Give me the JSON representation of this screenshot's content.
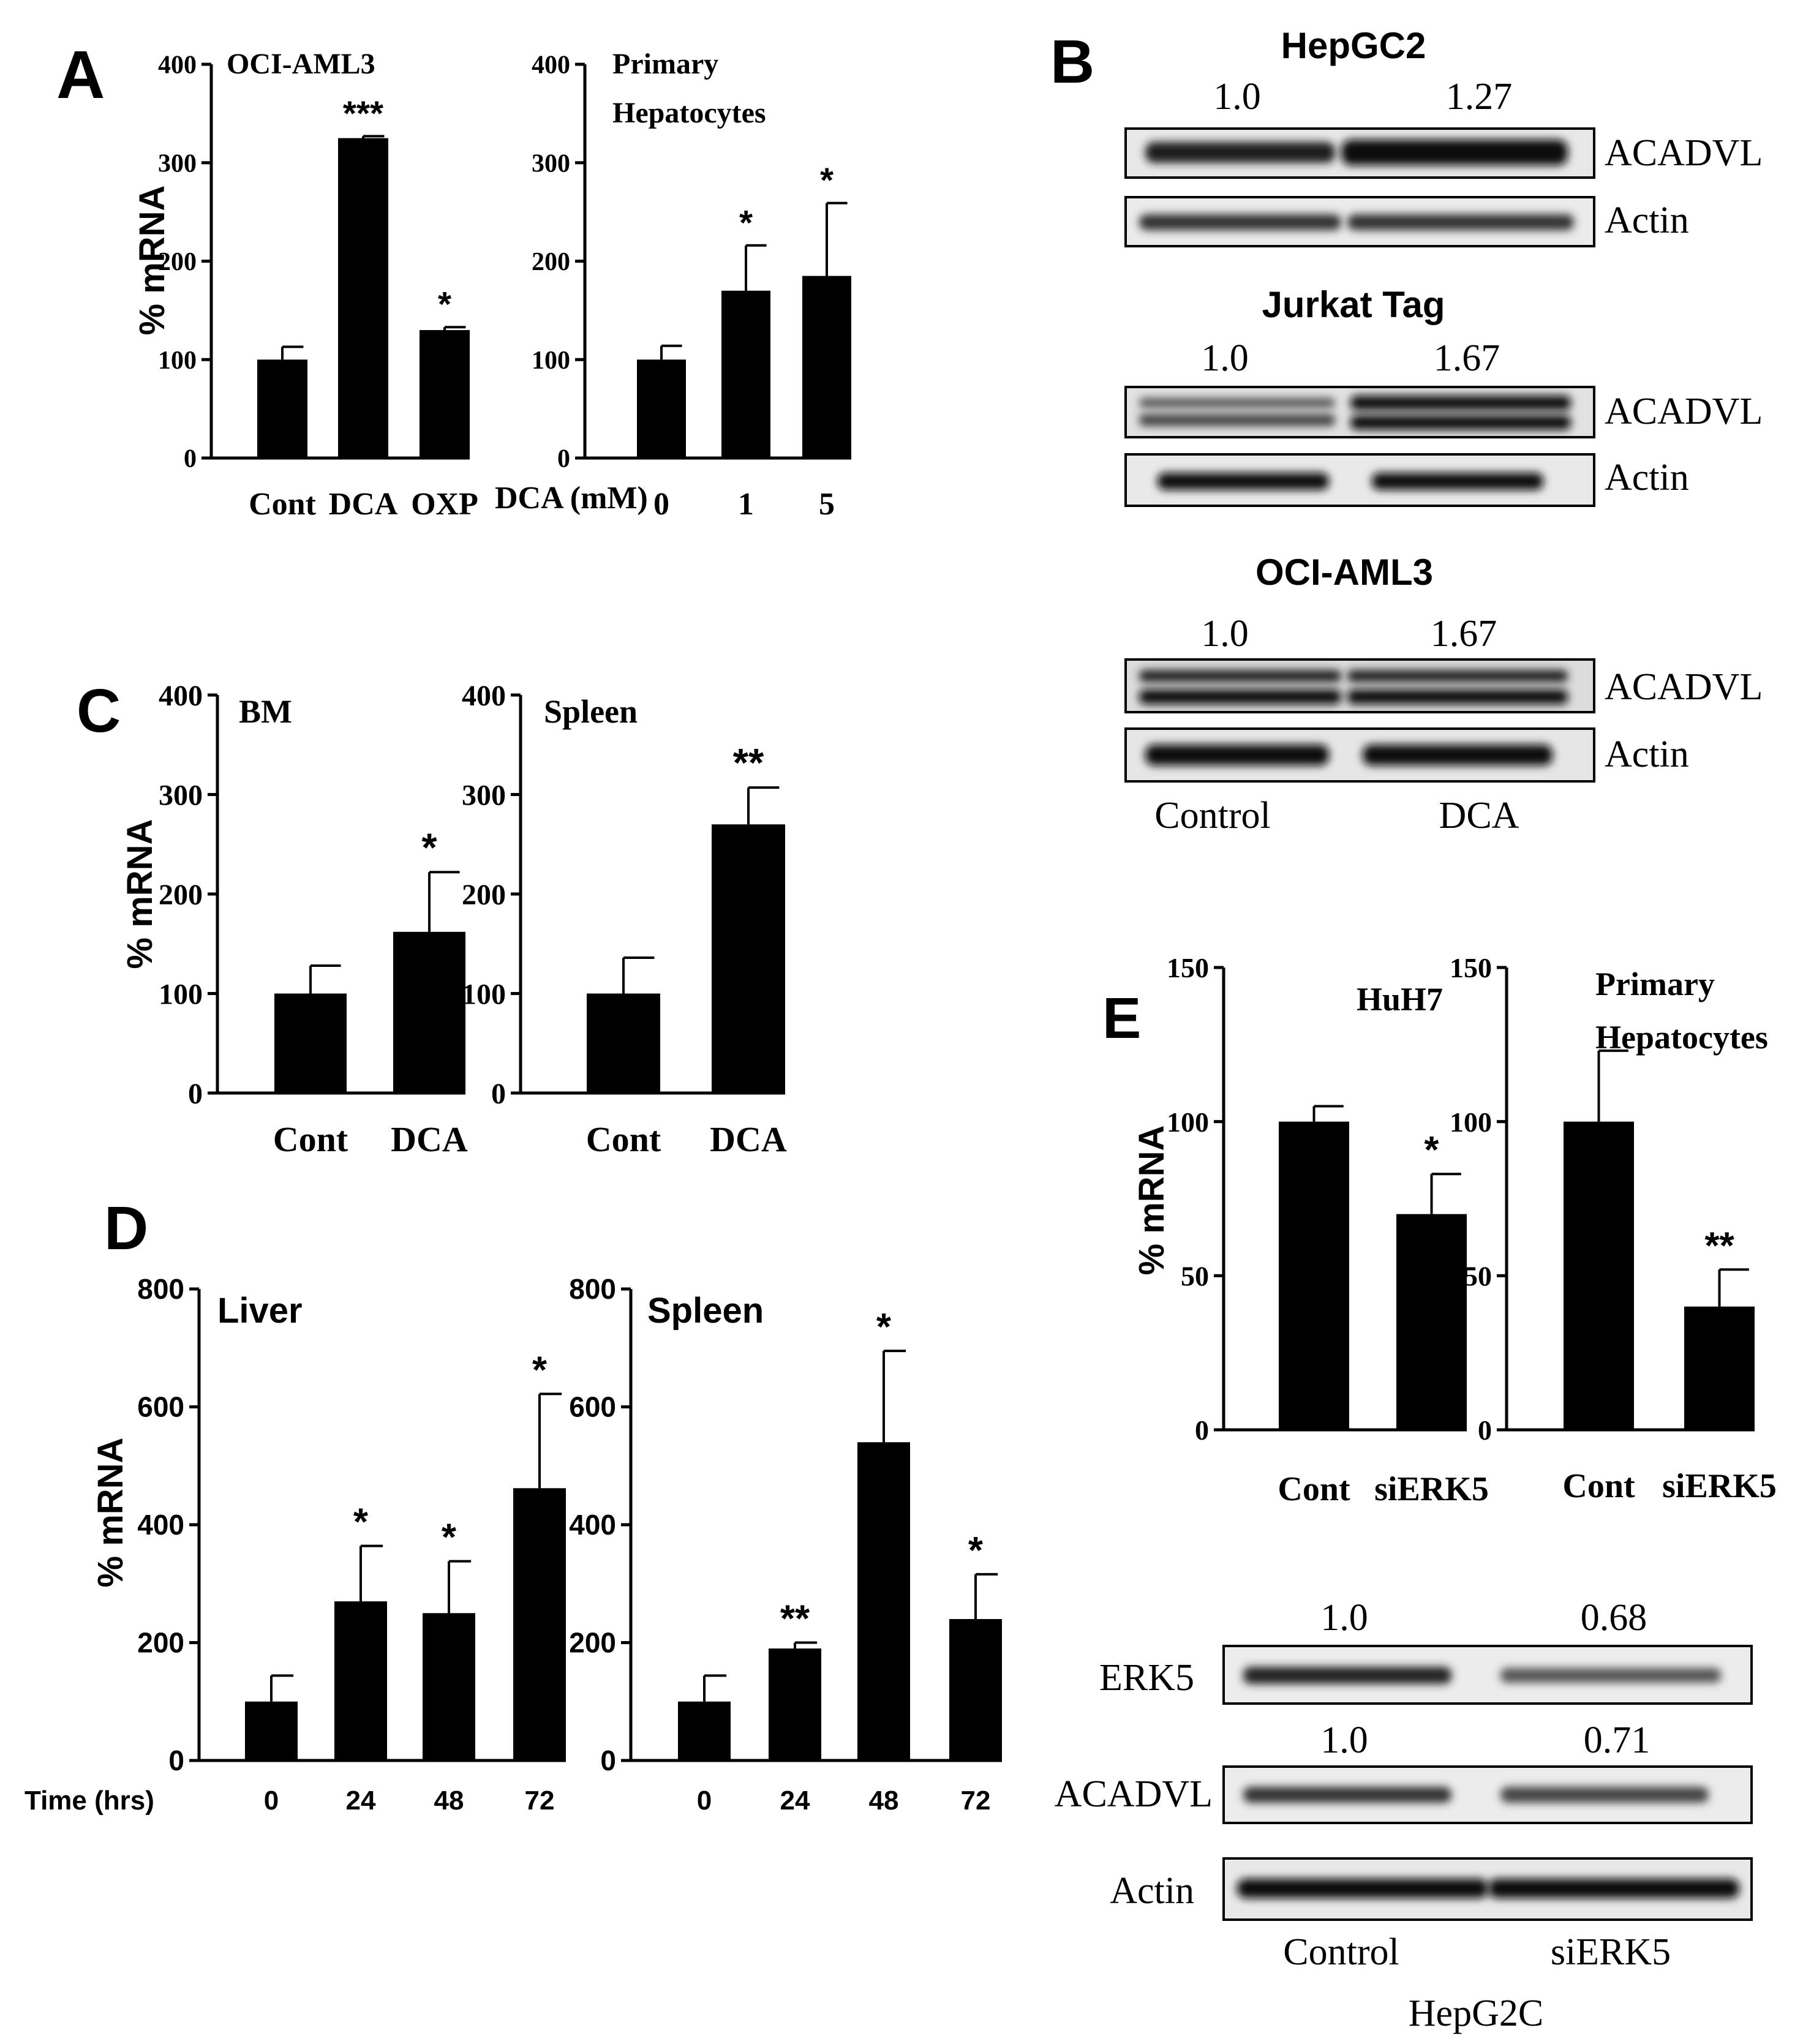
{
  "panels": {
    "A": "A",
    "B": "B",
    "C": "C",
    "D": "D",
    "E": "E"
  },
  "chart_data": [
    {
      "id": "A1",
      "type": "bar",
      "title": "OCI-AML3",
      "xlabel": "",
      "ylabel": "% mRNA",
      "ylim": [
        0,
        400
      ],
      "yticks": [
        0,
        100,
        200,
        300,
        400
      ],
      "categories": [
        "Cont",
        "DCA",
        "OXP"
      ],
      "values": [
        100,
        325,
        130
      ],
      "errors": [
        13,
        2,
        3
      ],
      "significance": [
        "",
        "***",
        "*"
      ]
    },
    {
      "id": "A2",
      "type": "bar",
      "title": "Primary Hepatocytes",
      "xlabel": "DCA (mM)",
      "ylabel": "",
      "ylim": [
        0,
        400
      ],
      "yticks": [
        0,
        100,
        200,
        300,
        400
      ],
      "categories": [
        "0",
        "1",
        "5"
      ],
      "values": [
        100,
        170,
        185
      ],
      "errors": [
        14,
        46,
        74
      ],
      "significance": [
        "",
        "*",
        "*"
      ]
    },
    {
      "id": "C1",
      "type": "bar",
      "title": "BM",
      "xlabel": "",
      "ylabel": "% mRNA",
      "ylim": [
        0,
        400
      ],
      "yticks": [
        0,
        100,
        200,
        300,
        400
      ],
      "categories": [
        "Cont",
        "DCA"
      ],
      "values": [
        100,
        162
      ],
      "errors": [
        28,
        60
      ],
      "significance": [
        "",
        "*"
      ]
    },
    {
      "id": "C2",
      "type": "bar",
      "title": "Spleen",
      "xlabel": "",
      "ylabel": "",
      "ylim": [
        0,
        400
      ],
      "yticks": [
        0,
        100,
        200,
        300,
        400
      ],
      "categories": [
        "Cont",
        "DCA"
      ],
      "values": [
        100,
        270
      ],
      "errors": [
        36,
        37
      ],
      "significance": [
        "",
        "**"
      ]
    },
    {
      "id": "D1",
      "type": "bar",
      "title": "Liver",
      "xlabel": "Time (hrs)",
      "ylabel": "% mRNA",
      "ylim": [
        0,
        800
      ],
      "yticks": [
        0,
        200,
        400,
        600,
        800
      ],
      "categories": [
        "0",
        "24",
        "48",
        "72"
      ],
      "values": [
        100,
        270,
        250,
        462
      ],
      "errors": [
        44,
        94,
        88,
        160
      ],
      "significance": [
        "",
        "*",
        "*",
        "*"
      ]
    },
    {
      "id": "D2",
      "type": "bar",
      "title": "Spleen",
      "xlabel": "",
      "ylabel": "",
      "ylim": [
        0,
        800
      ],
      "yticks": [
        0,
        200,
        400,
        600,
        800
      ],
      "categories": [
        "0",
        "24",
        "48",
        "72"
      ],
      "values": [
        100,
        190,
        540,
        240
      ],
      "errors": [
        44,
        10,
        155,
        76
      ],
      "significance": [
        "",
        "**",
        "*",
        "*"
      ]
    },
    {
      "id": "E1",
      "type": "bar",
      "title": "HuH7",
      "xlabel": "",
      "ylabel": "% mRNA",
      "ylim": [
        0,
        150
      ],
      "yticks": [
        0,
        50,
        100,
        150
      ],
      "categories": [
        "Cont",
        "siERK5"
      ],
      "values": [
        100,
        70
      ],
      "errors": [
        5,
        13
      ],
      "significance": [
        "",
        "*"
      ]
    },
    {
      "id": "E2",
      "type": "bar",
      "title": "Primary Hepatocytes",
      "xlabel": "",
      "ylabel": "",
      "ylim": [
        0,
        150
      ],
      "yticks": [
        0,
        50,
        100,
        150
      ],
      "categories": [
        "Cont",
        "siERK5"
      ],
      "values": [
        100,
        40
      ],
      "errors": [
        23,
        12
      ],
      "significance": [
        "",
        "**"
      ]
    }
  ],
  "blots": {
    "B": {
      "groups": [
        {
          "title": "HepGC2",
          "values": [
            "1.0",
            "1.27"
          ],
          "bands": [
            "ACADVL",
            "Actin"
          ]
        },
        {
          "title": "Jurkat Tag",
          "values": [
            "1.0",
            "1.67"
          ],
          "bands": [
            "ACADVL",
            "Actin"
          ]
        },
        {
          "title": "OCI-AML3",
          "values": [
            "1.0",
            "1.67"
          ],
          "bands": [
            "ACADVL",
            "Actin"
          ]
        }
      ],
      "lanes": [
        "Control",
        "DCA"
      ]
    },
    "E": {
      "erk5_values": [
        "1.0",
        "0.68"
      ],
      "acadvl_values": [
        "1.0",
        "0.71"
      ],
      "bands": [
        "ERK5",
        "ACADVL",
        "Actin"
      ],
      "lanes": [
        "Control",
        "siERK5"
      ],
      "cell_line": "HepG2C"
    }
  }
}
